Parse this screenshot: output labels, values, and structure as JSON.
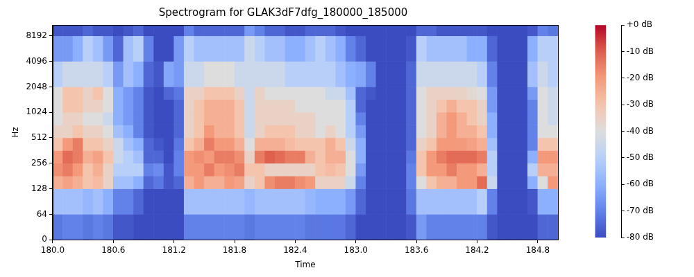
{
  "chart_data": {
    "type": "heatmap",
    "title": "Spectrogram for GLAK3dF7dfg_180000_185000",
    "x_label": "Time",
    "y_label": "Hz",
    "log": "y",
    "grid": false,
    "xlim": [
      180,
      185
    ],
    "xticks": [
      {
        "value": 180,
        "label": "180.0"
      },
      180.6,
      181.2,
      181.8,
      182.4,
      {
        "value": 183,
        "label": "183.0"
      },
      183.6,
      184.2,
      184.8
    ],
    "ylim": [
      0,
      11025
    ],
    "yticks": [
      0,
      64,
      128,
      256,
      512,
      1024,
      2048,
      4096,
      8192
    ],
    "cells": {
      "x": [
        180.0,
        180.1,
        180.2,
        180.3,
        180.4,
        180.5,
        180.6,
        180.7,
        180.8,
        180.9,
        181.0,
        181.1,
        181.2,
        181.3,
        181.4,
        181.5,
        181.6,
        181.7,
        181.8,
        181.9,
        182.0,
        182.1,
        182.2,
        182.3,
        182.4,
        182.5,
        182.6,
        182.7,
        182.8,
        182.9,
        183.0,
        183.1,
        183.2,
        183.3,
        183.4,
        183.5,
        183.6,
        183.7,
        183.8,
        183.9,
        184.0,
        184.1,
        184.2,
        184.3,
        184.4,
        184.5,
        184.6,
        184.7,
        184.8,
        184.9,
        185.0
      ],
      "y": [
        0,
        64,
        128,
        181,
        256,
        362,
        512,
        724,
        1024,
        1448,
        2048,
        4096,
        8192,
        11025
      ],
      "values": [
        [
          -72,
          -55,
          -25,
          -18,
          -20,
          -30,
          -35,
          -40,
          -40,
          -40,
          -50,
          -65,
          -78
        ],
        [
          -70,
          -55,
          -22,
          -15,
          -12,
          -20,
          -35,
          -35,
          -30,
          -30,
          -45,
          -65,
          -78
        ],
        [
          -70,
          -55,
          -25,
          -20,
          -15,
          -15,
          -30,
          -35,
          -30,
          -30,
          -45,
          -60,
          -78
        ],
        [
          -72,
          -58,
          -30,
          -30,
          -25,
          -30,
          -35,
          -40,
          -35,
          -35,
          -45,
          -50,
          -75
        ],
        [
          -70,
          -55,
          -28,
          -25,
          -22,
          -30,
          -35,
          -40,
          -35,
          -30,
          -45,
          -55,
          -78
        ],
        [
          -72,
          -60,
          -35,
          -35,
          -30,
          -35,
          -40,
          -45,
          -40,
          -40,
          -50,
          -65,
          -78
        ],
        [
          -78,
          -70,
          -55,
          -50,
          -45,
          -45,
          -55,
          -60,
          -60,
          -60,
          -65,
          -75,
          -80
        ],
        [
          -78,
          -70,
          -55,
          -50,
          -50,
          -55,
          -60,
          -65,
          -65,
          -65,
          -55,
          -55,
          -78
        ],
        [
          -80,
          -75,
          -60,
          -50,
          -55,
          -60,
          -70,
          -70,
          -70,
          -70,
          -60,
          -50,
          -75
        ],
        [
          -80,
          -80,
          -75,
          -70,
          -75,
          -75,
          -78,
          -78,
          -78,
          -78,
          -75,
          -70,
          -80
        ],
        [
          -80,
          -80,
          -72,
          -68,
          -75,
          -78,
          -80,
          -80,
          -80,
          -80,
          -78,
          -80,
          -80
        ],
        [
          -80,
          -80,
          -78,
          -78,
          -80,
          -80,
          -80,
          -80,
          -80,
          -75,
          -62,
          -80,
          -80
        ],
        [
          -80,
          -80,
          -75,
          -70,
          -70,
          -72,
          -75,
          -75,
          -75,
          -72,
          -65,
          -65,
          -80
        ],
        [
          -70,
          -55,
          -25,
          -20,
          -20,
          -30,
          -35,
          -35,
          -35,
          -35,
          -45,
          -50,
          -70
        ],
        [
          -70,
          -55,
          -20,
          -20,
          -18,
          -25,
          -30,
          -30,
          -30,
          -35,
          -45,
          -55,
          -75
        ],
        [
          -70,
          -55,
          -25,
          -15,
          -20,
          -15,
          -20,
          -25,
          -25,
          -30,
          -40,
          -55,
          -75
        ],
        [
          -70,
          -55,
          -25,
          -20,
          -15,
          -20,
          -25,
          -25,
          -25,
          -30,
          -40,
          -55,
          -75
        ],
        [
          -70,
          -55,
          -20,
          -18,
          -15,
          -20,
          -25,
          -25,
          -25,
          -30,
          -40,
          -55,
          -75
        ],
        [
          -70,
          -55,
          -22,
          -15,
          -18,
          -25,
          -30,
          -30,
          -30,
          -35,
          -45,
          -55,
          -75
        ],
        [
          -72,
          -58,
          -35,
          -30,
          -35,
          -40,
          -45,
          -45,
          -45,
          -45,
          -45,
          -45,
          -65
        ],
        [
          -70,
          -55,
          -30,
          -30,
          -15,
          -25,
          -35,
          -35,
          -35,
          -35,
          -45,
          -50,
          -70
        ],
        [
          -70,
          -55,
          -18,
          -35,
          -10,
          -25,
          -30,
          -35,
          -35,
          -40,
          -45,
          -55,
          -75
        ],
        [
          -70,
          -55,
          -15,
          -35,
          -12,
          -25,
          -30,
          -35,
          -35,
          -40,
          -45,
          -55,
          -75
        ],
        [
          -70,
          -55,
          -15,
          -35,
          -15,
          -28,
          -30,
          -35,
          -35,
          -40,
          -50,
          -60,
          -78
        ],
        [
          -70,
          -55,
          -18,
          -35,
          -15,
          -30,
          -35,
          -35,
          -40,
          -40,
          -50,
          -60,
          -78
        ],
        [
          -72,
          -58,
          -20,
          -35,
          -25,
          -30,
          -35,
          -35,
          -40,
          -40,
          -50,
          -55,
          -75
        ],
        [
          -72,
          -60,
          -35,
          -30,
          -30,
          -30,
          -40,
          -40,
          -40,
          -40,
          -50,
          -50,
          -75
        ],
        [
          -72,
          -60,
          -35,
          -28,
          -25,
          -25,
          -35,
          -40,
          -40,
          -45,
          -50,
          -55,
          -75
        ],
        [
          -72,
          -60,
          -35,
          -30,
          -25,
          -30,
          -40,
          -40,
          -40,
          -45,
          -55,
          -60,
          -78
        ],
        [
          -75,
          -65,
          -45,
          -40,
          -40,
          -45,
          -50,
          -50,
          -50,
          -55,
          -60,
          -70,
          -80
        ],
        [
          -80,
          -75,
          -70,
          -65,
          -60,
          -60,
          -65,
          -70,
          -75,
          -75,
          -62,
          -75,
          -80
        ],
        [
          -80,
          -80,
          -80,
          -80,
          -80,
          -80,
          -80,
          -80,
          -80,
          -78,
          -70,
          -80,
          -80
        ],
        [
          -80,
          -80,
          -80,
          -80,
          -80,
          -80,
          -80,
          -80,
          -80,
          -80,
          -80,
          -80,
          -80
        ],
        [
          -80,
          -80,
          -80,
          -80,
          -80,
          -80,
          -80,
          -80,
          -80,
          -80,
          -80,
          -80,
          -80
        ],
        [
          -80,
          -80,
          -80,
          -80,
          -80,
          -80,
          -80,
          -80,
          -80,
          -80,
          -80,
          -80,
          -80
        ],
        [
          -78,
          -72,
          -70,
          -70,
          -72,
          -75,
          -75,
          -75,
          -75,
          -75,
          -75,
          -78,
          -80
        ],
        [
          -65,
          -55,
          -40,
          -30,
          -30,
          -35,
          -40,
          -40,
          -40,
          -40,
          -45,
          -50,
          -75
        ],
        [
          -70,
          -55,
          -30,
          -20,
          -20,
          -30,
          -35,
          -35,
          -35,
          -35,
          -45,
          -55,
          -75
        ],
        [
          -70,
          -55,
          -25,
          -20,
          -15,
          -20,
          -25,
          -25,
          -30,
          -35,
          -45,
          -55,
          -78
        ],
        [
          -70,
          -55,
          -25,
          -15,
          -12,
          -20,
          -20,
          -20,
          -25,
          -35,
          -45,
          -55,
          -78
        ],
        [
          -70,
          -55,
          -20,
          -20,
          -12,
          -20,
          -25,
          -25,
          -30,
          -35,
          -45,
          -55,
          -78
        ],
        [
          -70,
          -55,
          -20,
          -20,
          -12,
          -22,
          -25,
          -30,
          -30,
          -38,
          -45,
          -60,
          -78
        ],
        [
          -70,
          -50,
          -12,
          -25,
          -15,
          -25,
          -30,
          -35,
          -35,
          -40,
          -50,
          -60,
          -78
        ],
        [
          -78,
          -70,
          -45,
          -50,
          -50,
          -55,
          -60,
          -60,
          -65,
          -65,
          -70,
          -75,
          -80
        ],
        [
          -80,
          -80,
          -80,
          -80,
          -80,
          -80,
          -80,
          -80,
          -80,
          -80,
          -80,
          -80,
          -80
        ],
        [
          -80,
          -80,
          -80,
          -80,
          -80,
          -80,
          -80,
          -80,
          -80,
          -80,
          -80,
          -80,
          -80
        ],
        [
          -80,
          -80,
          -80,
          -80,
          -80,
          -80,
          -80,
          -80,
          -80,
          -80,
          -80,
          -80,
          -80
        ],
        [
          -80,
          -78,
          -60,
          -50,
          -60,
          -70,
          -70,
          -70,
          -70,
          -65,
          -55,
          -60,
          -78
        ],
        [
          -75,
          -60,
          -40,
          -25,
          -20,
          -30,
          -40,
          -40,
          -40,
          -40,
          -45,
          -50,
          -70
        ],
        [
          -75,
          -60,
          -20,
          -25,
          -20,
          -30,
          -40,
          -45,
          -45,
          -45,
          -50,
          -50,
          -72
        ]
      ]
    },
    "colorbar_range": [
      -80,
      0
    ],
    "colorbar_ticks": [
      {
        "value": 0,
        "label": "+0 dB"
      },
      {
        "value": -10,
        "label": "-10 dB"
      },
      {
        "value": -20,
        "label": "-20 dB"
      },
      {
        "value": -30,
        "label": "-30 dB"
      },
      {
        "value": -40,
        "label": "-40 dB"
      },
      {
        "value": -50,
        "label": "-50 dB"
      },
      {
        "value": -60,
        "label": "-60 dB"
      },
      {
        "value": -70,
        "label": "-70 dB"
      },
      {
        "value": -80,
        "label": "-80 dB"
      }
    ]
  }
}
